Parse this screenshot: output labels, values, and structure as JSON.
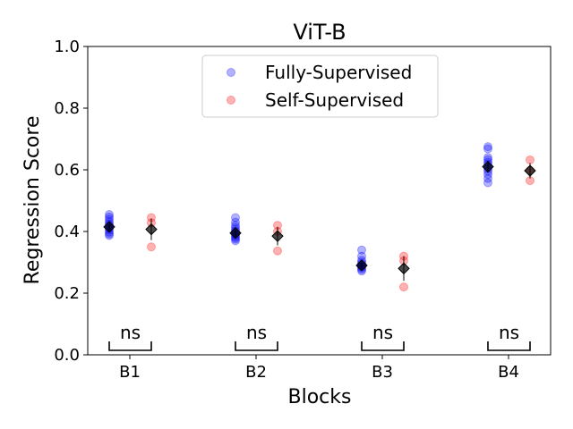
{
  "chart_data": {
    "type": "scatter",
    "title": "ViT-B",
    "xlabel": "Blocks",
    "ylabel": "Regression Score",
    "categories": [
      "B1",
      "B2",
      "B3",
      "B4"
    ],
    "ylim": [
      0.0,
      1.0
    ],
    "yticks": [
      "0.0",
      "0.2",
      "0.4",
      "0.6",
      "0.8",
      "1.0"
    ],
    "yticks_values": [
      0.0,
      0.2,
      0.4,
      0.6,
      0.8,
      1.0
    ],
    "legend_position": "top-center",
    "series": [
      {
        "name": "Fully-Supervised",
        "color": "#0000ff",
        "points": [
          [
            0.387,
            0.392,
            0.398,
            0.405,
            0.41,
            0.415,
            0.42,
            0.425,
            0.432,
            0.44,
            0.447,
            0.455
          ],
          [
            0.37,
            0.375,
            0.38,
            0.385,
            0.39,
            0.395,
            0.4,
            0.405,
            0.412,
            0.42,
            0.43,
            0.445
          ],
          [
            0.272,
            0.277,
            0.282,
            0.286,
            0.29,
            0.295,
            0.3,
            0.307,
            0.32,
            0.34
          ],
          [
            0.558,
            0.572,
            0.585,
            0.595,
            0.603,
            0.61,
            0.618,
            0.625,
            0.633,
            0.64,
            0.668,
            0.675
          ]
        ],
        "mean": [
          0.415,
          0.395,
          0.29,
          0.61
        ],
        "err": [
          0.012,
          0.012,
          0.01,
          0.018
        ]
      },
      {
        "name": "Self-Supervised",
        "color": "#ff0000",
        "points": [
          [
            0.35,
            0.428,
            0.445
          ],
          [
            0.337,
            0.4,
            0.42
          ],
          [
            0.22,
            0.305,
            0.32
          ],
          [
            0.565,
            0.598,
            0.632
          ]
        ],
        "mean": [
          0.407,
          0.385,
          0.28,
          0.597
        ],
        "err": [
          0.035,
          0.03,
          0.04,
          0.025
        ]
      }
    ],
    "annotations": [
      "ns",
      "ns",
      "ns",
      "ns"
    ]
  }
}
